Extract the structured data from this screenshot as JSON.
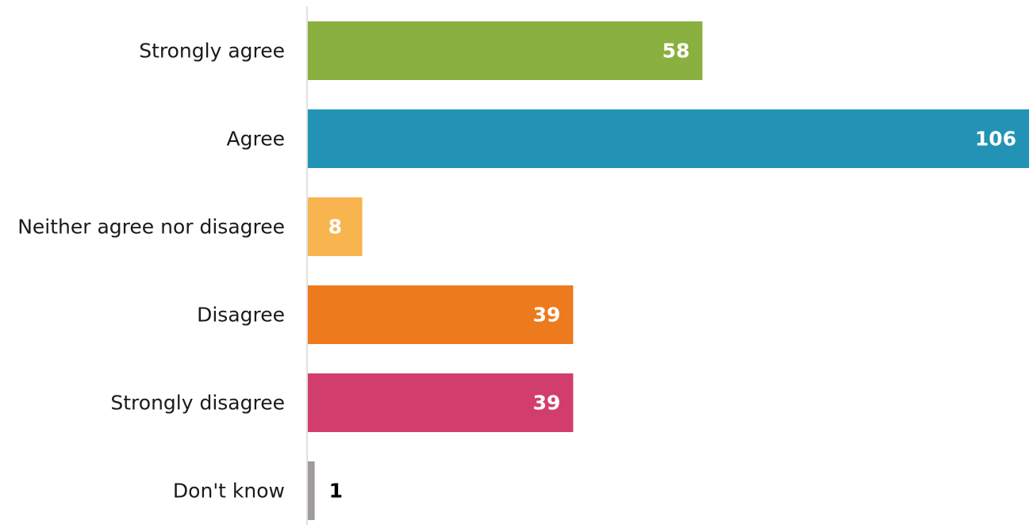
{
  "chart_data": {
    "type": "bar",
    "orientation": "horizontal",
    "categories": [
      "Strongly agree",
      "Agree",
      "Neither agree nor disagree",
      "Disagree",
      "Strongly disagree",
      "Don't know"
    ],
    "values": [
      58,
      106,
      8,
      39,
      39,
      1
    ],
    "value_labels": [
      "58",
      "106",
      "8",
      "39",
      "39",
      "1"
    ],
    "colors": [
      "#8ab040",
      "#2393b5",
      "#f8b44f",
      "#ed7a1d",
      "#d23e6b",
      "#9e9a9e"
    ],
    "value_label_colors": [
      "#ffffff",
      "#ffffff",
      "#ffffff",
      "#ffffff",
      "#ffffff",
      "#000000"
    ],
    "xlim": [
      0,
      106
    ],
    "grid": false,
    "axis_line_color": "#d9d9d9",
    "title": "",
    "xlabel": "",
    "ylabel": ""
  }
}
